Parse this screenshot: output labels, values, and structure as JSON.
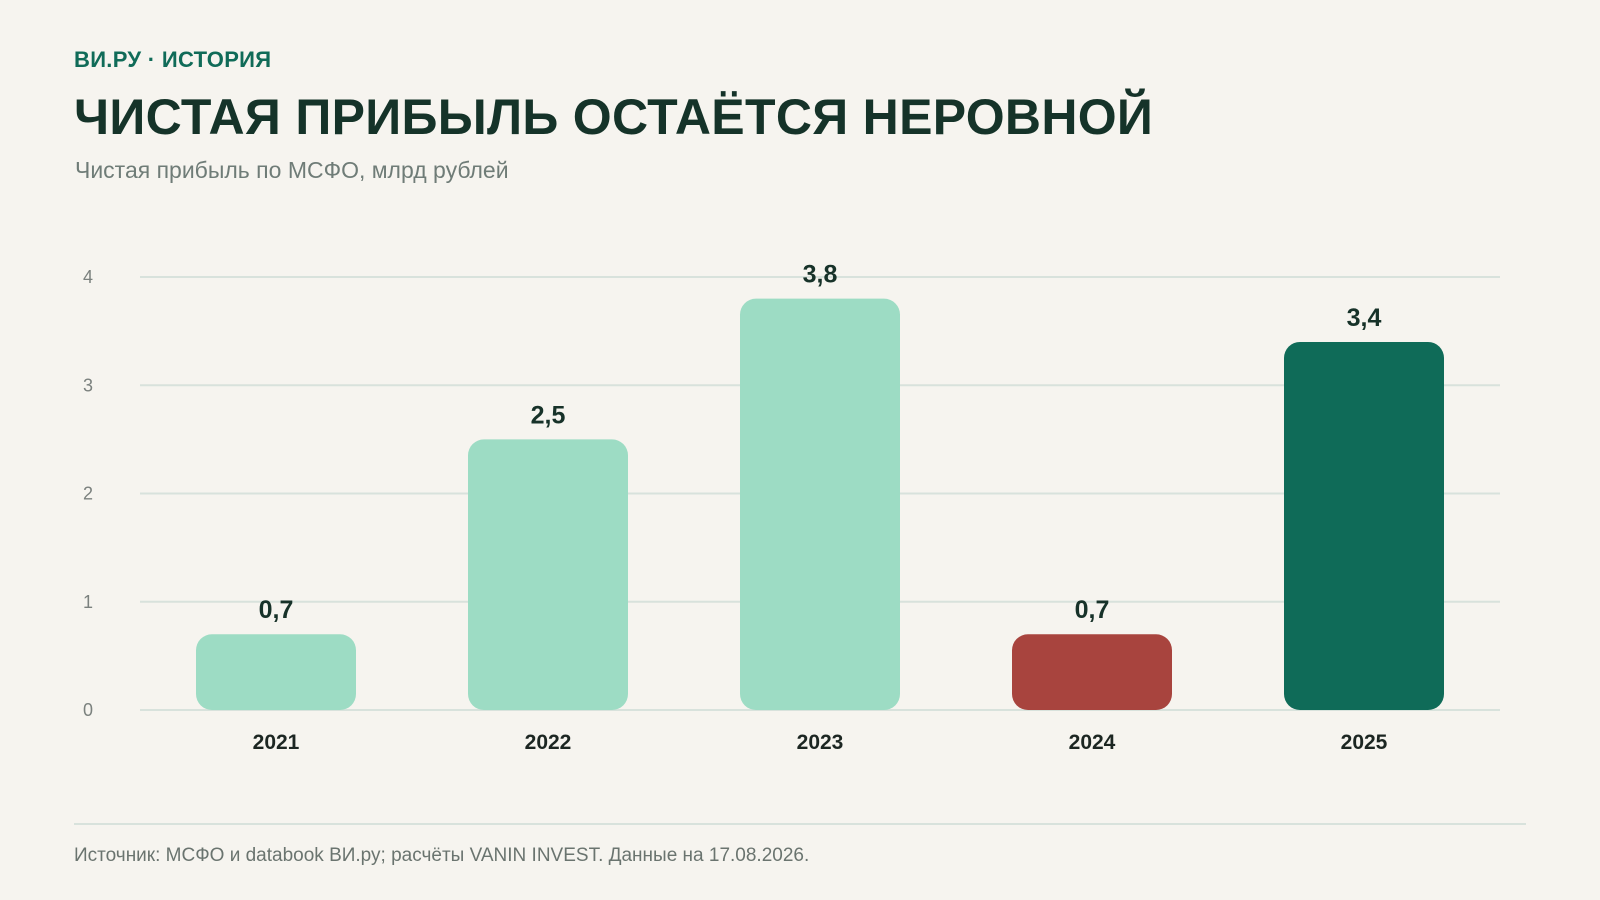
{
  "header": {
    "kicker": "ВИ.РУ · ИСТОРИЯ",
    "title": "ЧИСТАЯ ПРИБЫЛЬ ОСТАЁТСЯ НЕРОВНОЙ",
    "subtitle": "Чистая прибыль по МСФО, млрд рублей"
  },
  "footer": {
    "source": "Источник: МСФО и databook ВИ.ру; расчёты VANIN INVEST. Данные на 17.08.2026."
  },
  "colors": {
    "background": "#f6f4ef",
    "bar_default": "#9ddcc4",
    "bar_negative": "#a8443e",
    "bar_highlight": "#0f6b58",
    "grid": "#d8e2dc"
  },
  "chart_data": {
    "type": "bar",
    "title": "ЧИСТАЯ ПРИБЫЛЬ ОСТАЁТСЯ НЕРОВНОЙ",
    "subtitle": "Чистая прибыль по МСФО, млрд рублей",
    "categories": [
      "2021",
      "2022",
      "2023",
      "2024",
      "2025"
    ],
    "values": [
      0.7,
      2.5,
      3.8,
      0.7,
      3.4
    ],
    "value_labels": [
      "0,7",
      "2,5",
      "3,8",
      "0,7",
      "3,4"
    ],
    "bar_colors": [
      "#9ddcc4",
      "#9ddcc4",
      "#9ddcc4",
      "#a8443e",
      "#0f6b58"
    ],
    "yticks": [
      "0",
      "1",
      "2",
      "3",
      "4"
    ],
    "ylim": [
      0,
      4
    ],
    "grid": true,
    "legend": "none"
  }
}
